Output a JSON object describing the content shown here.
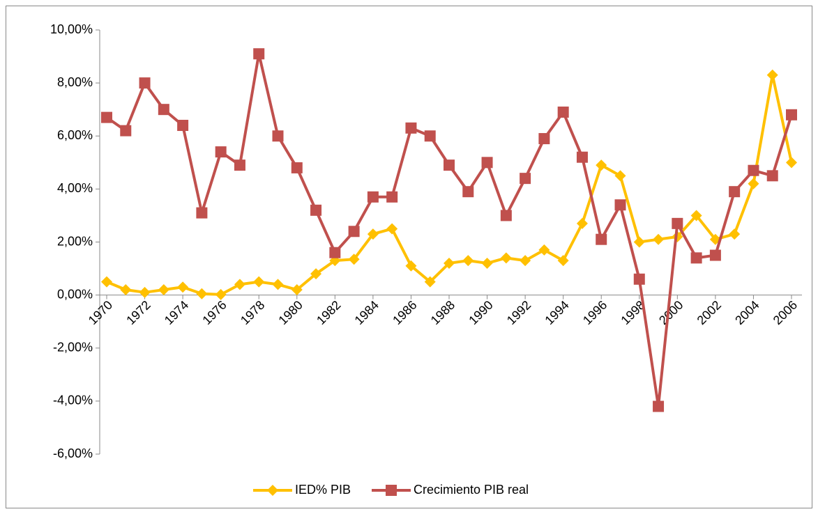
{
  "chart_data": {
    "type": "line",
    "x": [
      1970,
      1971,
      1972,
      1973,
      1974,
      1975,
      1976,
      1977,
      1978,
      1979,
      1980,
      1981,
      1982,
      1983,
      1984,
      1985,
      1986,
      1987,
      1988,
      1989,
      1990,
      1991,
      1992,
      1993,
      1994,
      1995,
      1996,
      1997,
      1998,
      1999,
      2000,
      2001,
      2002,
      2003,
      2004,
      2005,
      2006
    ],
    "series": [
      {
        "name": "IED% PIB",
        "color": "#ffc000",
        "marker": "diamond",
        "values": [
          0.5,
          0.2,
          0.1,
          0.2,
          0.3,
          0.05,
          0.02,
          0.4,
          0.5,
          0.4,
          0.2,
          0.8,
          1.3,
          1.35,
          2.3,
          2.5,
          1.1,
          0.5,
          1.2,
          1.3,
          1.2,
          1.4,
          1.3,
          1.7,
          1.3,
          2.7,
          4.9,
          4.5,
          2.0,
          2.1,
          2.2,
          3.0,
          2.1,
          2.3,
          4.2,
          8.3,
          5.0
        ]
      },
      {
        "name": "Crecimiento PIB real",
        "color": "#c0504d",
        "marker": "square",
        "values": [
          6.7,
          6.2,
          8.0,
          7.0,
          6.4,
          3.1,
          5.4,
          4.9,
          9.1,
          6.0,
          4.8,
          3.2,
          1.6,
          2.4,
          3.7,
          3.7,
          6.3,
          6.0,
          4.9,
          3.9,
          5.0,
          3.0,
          4.4,
          5.9,
          6.9,
          5.2,
          2.1,
          3.4,
          0.6,
          -4.2,
          2.7,
          1.4,
          1.5,
          3.9,
          4.7,
          4.5,
          6.8
        ]
      }
    ],
    "xlim": [
      1970,
      2006
    ],
    "xticks": [
      1970,
      1972,
      1974,
      1976,
      1978,
      1980,
      1982,
      1984,
      1986,
      1988,
      1990,
      1992,
      1994,
      1996,
      1998,
      2000,
      2002,
      2004,
      2006
    ],
    "ylim": [
      -6,
      10
    ],
    "yticks": [
      {
        "value": -6,
        "label": "-6,00%"
      },
      {
        "value": -4,
        "label": "-4,00%"
      },
      {
        "value": -2,
        "label": "-2,00%"
      },
      {
        "value": 0,
        "label": "0,00%"
      },
      {
        "value": 2,
        "label": "2,00%"
      },
      {
        "value": 4,
        "label": "4,00%"
      },
      {
        "value": 6,
        "label": "6,00%"
      },
      {
        "value": 8,
        "label": "8,00%"
      },
      {
        "value": 10,
        "label": "10,00%"
      }
    ],
    "grid": false,
    "legend": "bottom"
  }
}
